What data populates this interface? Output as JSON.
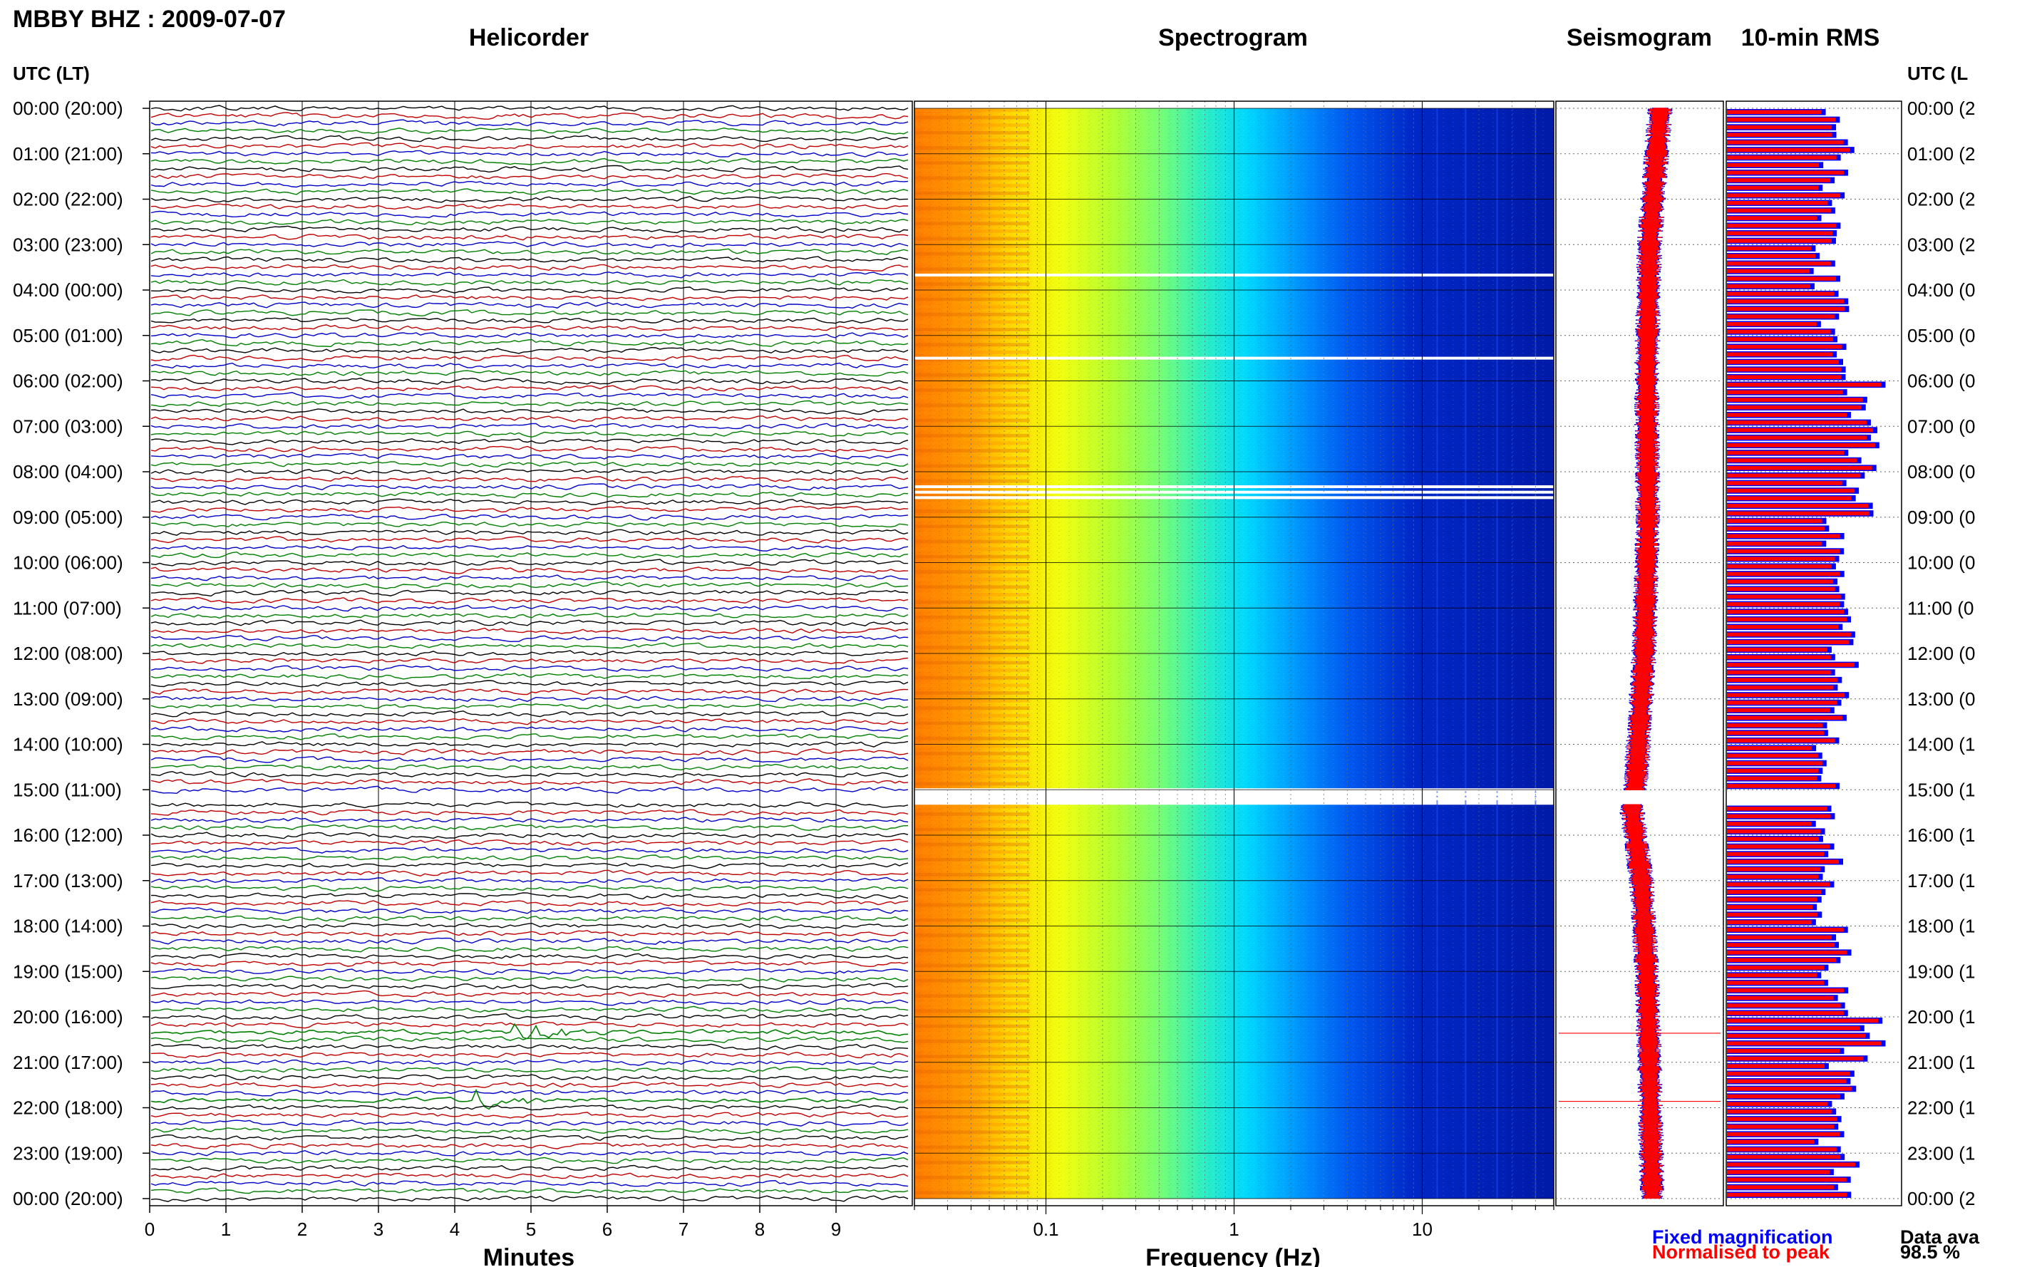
{
  "title": "MBBY BHZ : 2009-07-07",
  "panels": {
    "helicorder": "Helicorder",
    "spectrogram": "Spectrogram",
    "seismogram": "Seismogram",
    "rms": "10-min RMS"
  },
  "row_header": "UTC (LT)",
  "row_header_right": "UTC (L",
  "legend": {
    "fixed": "Fixed magnification",
    "normalised": "Normalised to peak",
    "availability_label": "Data ava",
    "availability_value": "98.5 %"
  },
  "colors": {
    "trace_cycle": [
      "#000000",
      "#c00000",
      "#0000c8",
      "#008000"
    ],
    "fixed_magnification": "#0000ff",
    "normalised_to_peak": "#ff0000",
    "grid": "#000000"
  },
  "chart_data": [
    {
      "type": "line",
      "name": "helicorder",
      "title": "Helicorder",
      "xlabel": "Minutes",
      "x_ticks": [
        0,
        1,
        2,
        3,
        4,
        5,
        6,
        7,
        8,
        9
      ],
      "xlim": [
        0,
        10
      ],
      "rows_per_hour": 6,
      "hours": 24,
      "row_labels": [
        "00:00 (20:00)",
        "01:00 (21:00)",
        "02:00 (22:00)",
        "03:00 (23:00)",
        "04:00 (00:00)",
        "05:00 (01:00)",
        "06:00 (02:00)",
        "07:00 (03:00)",
        "08:00 (04:00)",
        "09:00 (05:00)",
        "10:00 (06:00)",
        "11:00 (07:00)",
        "12:00 (08:00)",
        "13:00 (09:00)",
        "14:00 (10:00)",
        "15:00 (11:00)",
        "16:00 (12:00)",
        "17:00 (13:00)",
        "18:00 (14:00)",
        "19:00 (15:00)",
        "20:00 (16:00)",
        "21:00 (17:00)",
        "22:00 (18:00)",
        "23:00 (19:00)",
        "00:00 (20:00)"
      ],
      "right_labels": [
        "00:00 (2",
        "01:00 (2",
        "02:00 (2",
        "03:00 (2",
        "04:00 (0",
        "05:00 (0",
        "06:00 (0",
        "07:00 (0",
        "08:00 (0",
        "09:00 (0",
        "10:00 (0",
        "11:00 (0",
        "12:00 (0",
        "13:00 (0",
        "14:00 (1",
        "15:00 (1",
        "16:00 (1",
        "17:00 (1",
        "18:00 (1",
        "19:00 (1",
        "20:00 (1",
        "21:00 (1",
        "22:00 (1",
        "23:00 (1",
        "00:00 (2"
      ],
      "data_gap_hours": [
        15.0,
        15.33
      ],
      "events": [
        {
          "hour": 20.33,
          "minute_start": 4.75,
          "minute_end": 6.0,
          "amplitude": 2.5
        },
        {
          "hour": 21.83,
          "minute_start": 4.25,
          "minute_end": 5.2,
          "amplitude": 1.2
        }
      ]
    },
    {
      "type": "heatmap",
      "name": "spectrogram",
      "title": "Spectrogram",
      "xlabel": "Frequency (Hz)",
      "x_scale": "log",
      "xlim": [
        0.02,
        50
      ],
      "x_tick_labels": [
        "0.1",
        "1",
        "10"
      ],
      "x_ticks": [
        0.1,
        1,
        10
      ],
      "ylim_hours": [
        0,
        24
      ],
      "spectral_lines_hz": [
        12.0,
        17.0,
        25.0,
        40.0
      ],
      "blank_rows_hours": [
        3.67,
        5.5,
        8.33,
        8.45,
        8.57,
        15.0,
        15.1,
        15.2
      ]
    },
    {
      "type": "line",
      "name": "seismogram",
      "title": "Seismogram",
      "xlim": [
        -1,
        1
      ],
      "ylim_hours": [
        0,
        24
      ],
      "series": [
        {
          "name": "Fixed magnification",
          "color": "#0000ff"
        },
        {
          "name": "Normalised to peak",
          "color": "#ff0000"
        }
      ],
      "drift": [
        {
          "hour": 0,
          "value": 0.25
        },
        {
          "hour": 3,
          "value": 0.05
        },
        {
          "hour": 6,
          "value": 0.0
        },
        {
          "hour": 9,
          "value": 0.02
        },
        {
          "hour": 12,
          "value": -0.05
        },
        {
          "hour": 14.8,
          "value": -0.2
        },
        {
          "hour": 15.4,
          "value": -0.28
        },
        {
          "hour": 17,
          "value": -0.1
        },
        {
          "hour": 19,
          "value": 0.0
        },
        {
          "hour": 21,
          "value": 0.05
        },
        {
          "hour": 24,
          "value": 0.1
        }
      ]
    },
    {
      "type": "bar",
      "name": "rms",
      "title": "10-min RMS",
      "orientation": "horizontal",
      "bins_per_hour": 6,
      "xlim": [
        0,
        1
      ],
      "series": [
        {
          "name": "Fixed magnification",
          "color": "#0000ff"
        },
        {
          "name": "Normalised to peak",
          "color": "#ff0000"
        }
      ],
      "hourly_level": [
        0.78,
        0.74,
        0.72,
        0.68,
        0.74,
        0.86,
        0.9,
        0.94,
        0.9,
        0.76,
        0.74,
        0.8,
        0.84,
        0.72,
        0.7,
        0.7,
        0.7,
        0.68,
        0.8,
        0.74,
        0.9,
        0.8,
        0.72,
        0.8
      ],
      "peaks": [
        {
          "hour": 6.0,
          "value": 1.0
        },
        {
          "hour": 20.0,
          "value": 0.98
        },
        {
          "hour": 20.5,
          "value": 1.0
        },
        {
          "hour": 7.3,
          "value": 0.96
        }
      ]
    }
  ]
}
